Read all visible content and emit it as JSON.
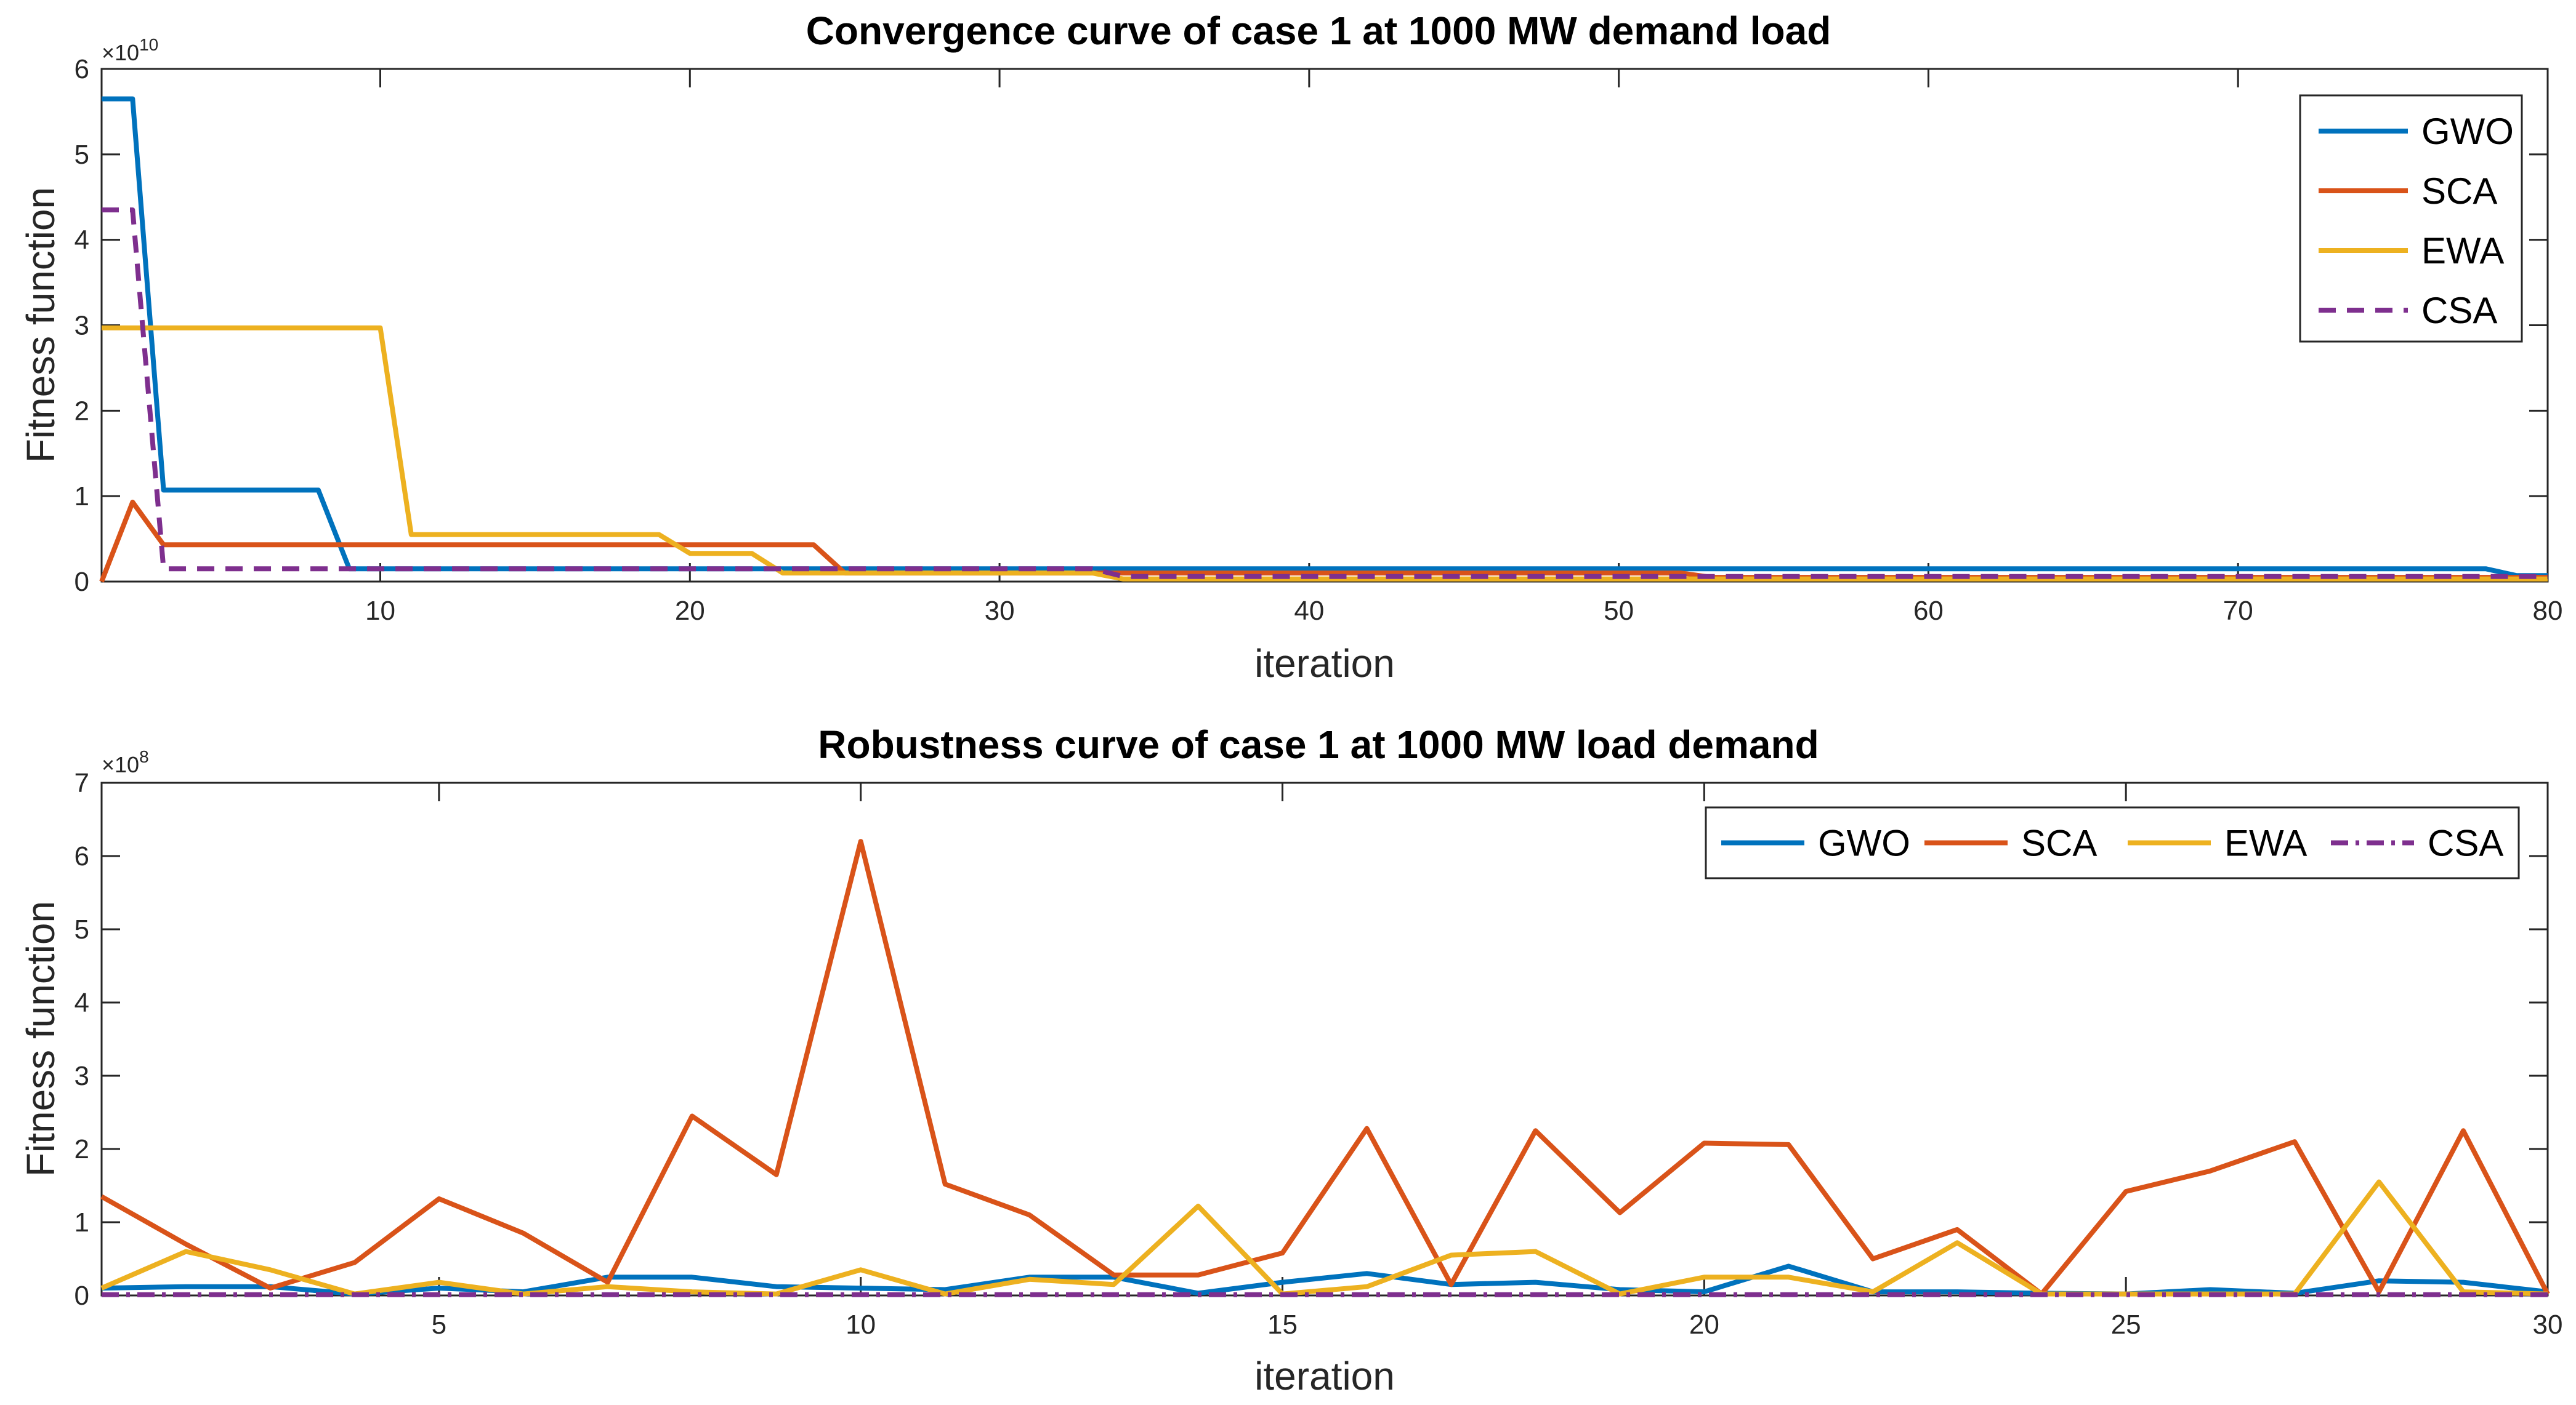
{
  "chart_data": [
    {
      "type": "line",
      "title": "Convergence curve of case 1 at 1000 MW demand load",
      "xlabel": "iteration",
      "ylabel": "Fitness function",
      "y_exponent_label": "×10",
      "y_exponent_value": "10",
      "xlim": [
        1,
        80
      ],
      "ylim": [
        0,
        6
      ],
      "xticks": [
        10,
        20,
        30,
        40,
        50,
        60,
        70,
        80
      ],
      "yticks": [
        0,
        1,
        2,
        3,
        4,
        5,
        6
      ],
      "legend": "top-right",
      "legend_layout": "vertical",
      "series": [
        {
          "name": "GWO",
          "color": "#0072BD",
          "dash": "solid",
          "points": [
            [
              1,
              5.65
            ],
            [
              2,
              5.65
            ],
            [
              3,
              1.07
            ],
            [
              8,
              1.07
            ],
            [
              9,
              0.15
            ],
            [
              78,
              0.15
            ],
            [
              79,
              0.07
            ],
            [
              80,
              0.07
            ]
          ]
        },
        {
          "name": "SCA",
          "color": "#D95319",
          "dash": "solid",
          "points": [
            [
              1,
              0.0
            ],
            [
              2,
              0.93
            ],
            [
              3,
              0.43
            ],
            [
              24,
              0.43
            ],
            [
              25,
              0.1
            ],
            [
              52,
              0.1
            ],
            [
              53,
              0.05
            ],
            [
              80,
              0.05
            ]
          ]
        },
        {
          "name": "EWA",
          "color": "#EDB120",
          "dash": "solid",
          "points": [
            [
              1,
              2.97
            ],
            [
              10,
              2.97
            ],
            [
              11,
              0.55
            ],
            [
              19,
              0.55
            ],
            [
              20,
              0.33
            ],
            [
              22,
              0.33
            ],
            [
              23,
              0.1
            ],
            [
              33,
              0.1
            ],
            [
              34,
              0.03
            ],
            [
              80,
              0.03
            ]
          ]
        },
        {
          "name": "CSA",
          "color": "#7E2F8E",
          "dash": "dashed",
          "points": [
            [
              1,
              4.35
            ],
            [
              2,
              4.35
            ],
            [
              3,
              0.15
            ],
            [
              33,
              0.15
            ],
            [
              34,
              0.06
            ],
            [
              80,
              0.06
            ]
          ]
        }
      ]
    },
    {
      "type": "line",
      "title": "Robustness curve of case 1 at 1000 MW load demand",
      "xlabel": "iteration",
      "ylabel": "Fitness function",
      "y_exponent_label": "×10",
      "y_exponent_value": "8",
      "xlim": [
        1,
        30
      ],
      "ylim": [
        0,
        7
      ],
      "xticks": [
        5,
        10,
        15,
        20,
        25,
        30
      ],
      "yticks": [
        0,
        1,
        2,
        3,
        4,
        5,
        6,
        7
      ],
      "legend": "top-right",
      "legend_layout": "horizontal",
      "series": [
        {
          "name": "GWO",
          "color": "#0072BD",
          "dash": "solid",
          "points": [
            [
              1,
              0.1
            ],
            [
              2,
              0.12
            ],
            [
              3,
              0.12
            ],
            [
              4,
              0.02
            ],
            [
              5,
              0.1
            ],
            [
              6,
              0.05
            ],
            [
              7,
              0.25
            ],
            [
              8,
              0.25
            ],
            [
              9,
              0.12
            ],
            [
              10,
              0.1
            ],
            [
              11,
              0.08
            ],
            [
              12,
              0.25
            ],
            [
              13,
              0.25
            ],
            [
              14,
              0.03
            ],
            [
              15,
              0.18
            ],
            [
              16,
              0.3
            ],
            [
              17,
              0.15
            ],
            [
              18,
              0.18
            ],
            [
              19,
              0.08
            ],
            [
              20,
              0.05
            ],
            [
              21,
              0.4
            ],
            [
              22,
              0.05
            ],
            [
              23,
              0.05
            ],
            [
              24,
              0.03
            ],
            [
              25,
              0.02
            ],
            [
              26,
              0.08
            ],
            [
              27,
              0.03
            ],
            [
              28,
              0.2
            ],
            [
              29,
              0.18
            ],
            [
              30,
              0.05
            ]
          ]
        },
        {
          "name": "SCA",
          "color": "#D95319",
          "dash": "solid",
          "points": [
            [
              1,
              1.35
            ],
            [
              2,
              0.7
            ],
            [
              3,
              0.1
            ],
            [
              4,
              0.45
            ],
            [
              5,
              1.32
            ],
            [
              6,
              0.85
            ],
            [
              7,
              0.18
            ],
            [
              8,
              2.45
            ],
            [
              9,
              1.65
            ],
            [
              10,
              6.2
            ],
            [
              11,
              1.52
            ],
            [
              12,
              1.1
            ],
            [
              13,
              0.28
            ],
            [
              14,
              0.28
            ],
            [
              15,
              0.58
            ],
            [
              16,
              2.28
            ],
            [
              17,
              0.15
            ],
            [
              18,
              2.25
            ],
            [
              19,
              1.13
            ],
            [
              20,
              2.08
            ],
            [
              21,
              2.06
            ],
            [
              22,
              0.5
            ],
            [
              23,
              0.9
            ],
            [
              24,
              0.02
            ],
            [
              25,
              1.42
            ],
            [
              26,
              1.7
            ],
            [
              27,
              2.1
            ],
            [
              28,
              0.05
            ],
            [
              29,
              2.25
            ],
            [
              30,
              0.02
            ]
          ]
        },
        {
          "name": "EWA",
          "color": "#EDB120",
          "dash": "solid",
          "points": [
            [
              1,
              0.1
            ],
            [
              2,
              0.6
            ],
            [
              3,
              0.35
            ],
            [
              4,
              0.02
            ],
            [
              5,
              0.18
            ],
            [
              6,
              0.02
            ],
            [
              7,
              0.12
            ],
            [
              8,
              0.05
            ],
            [
              9,
              0.02
            ],
            [
              10,
              0.35
            ],
            [
              11,
              0.02
            ],
            [
              12,
              0.22
            ],
            [
              13,
              0.15
            ],
            [
              14,
              1.22
            ],
            [
              15,
              0.02
            ],
            [
              16,
              0.12
            ],
            [
              17,
              0.55
            ],
            [
              18,
              0.6
            ],
            [
              19,
              0.02
            ],
            [
              20,
              0.25
            ],
            [
              21,
              0.25
            ],
            [
              22,
              0.05
            ],
            [
              23,
              0.72
            ],
            [
              24,
              0.02
            ],
            [
              25,
              0.02
            ],
            [
              26,
              0.02
            ],
            [
              27,
              0.02
            ],
            [
              28,
              1.55
            ],
            [
              29,
              0.05
            ],
            [
              30,
              0.02
            ]
          ]
        },
        {
          "name": "CSA",
          "color": "#7E2F8E",
          "dash": "dashdot",
          "points": [
            [
              1,
              0.01
            ],
            [
              30,
              0.01
            ]
          ]
        }
      ]
    }
  ]
}
